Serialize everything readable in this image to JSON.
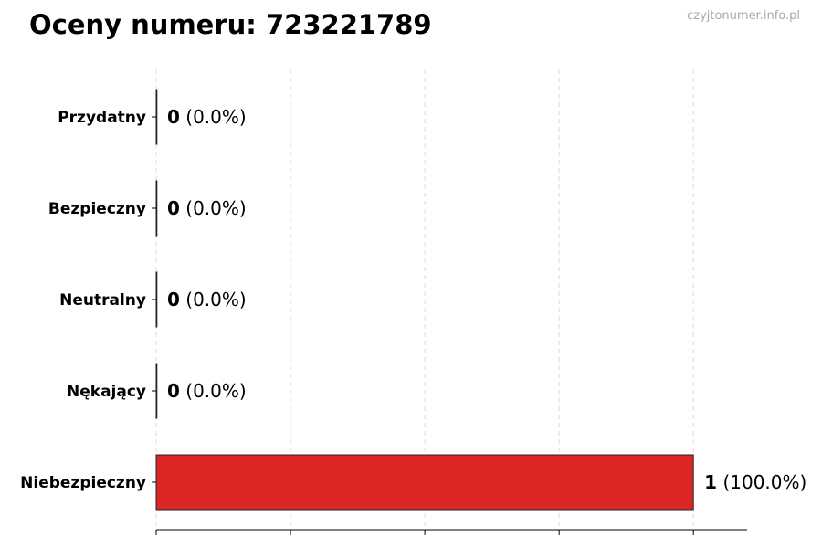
{
  "chart_data": {
    "type": "bar",
    "orientation": "horizontal",
    "title": "Oceny numeru: 723221789",
    "watermark": "czyjtonumer.info.pl",
    "categories": [
      "Przydatny",
      "Bezpieczny",
      "Neutralny",
      "Nękający",
      "Niebezpieczny"
    ],
    "values": [
      0,
      0,
      0,
      0,
      1
    ],
    "labels": [
      "(0.0%)",
      "(0.0%)",
      "(0.0%)",
      "(0.0%)",
      "(100.0%)"
    ],
    "xlim": [
      0,
      1.1
    ],
    "xticks": [
      0,
      0.25,
      0.5,
      0.75,
      1
    ],
    "xtick_labels_shown": false,
    "grid": "x dashed",
    "colors": {
      "bar": "#dc2626",
      "edge": "#222222",
      "grid": "#dddddd"
    }
  }
}
